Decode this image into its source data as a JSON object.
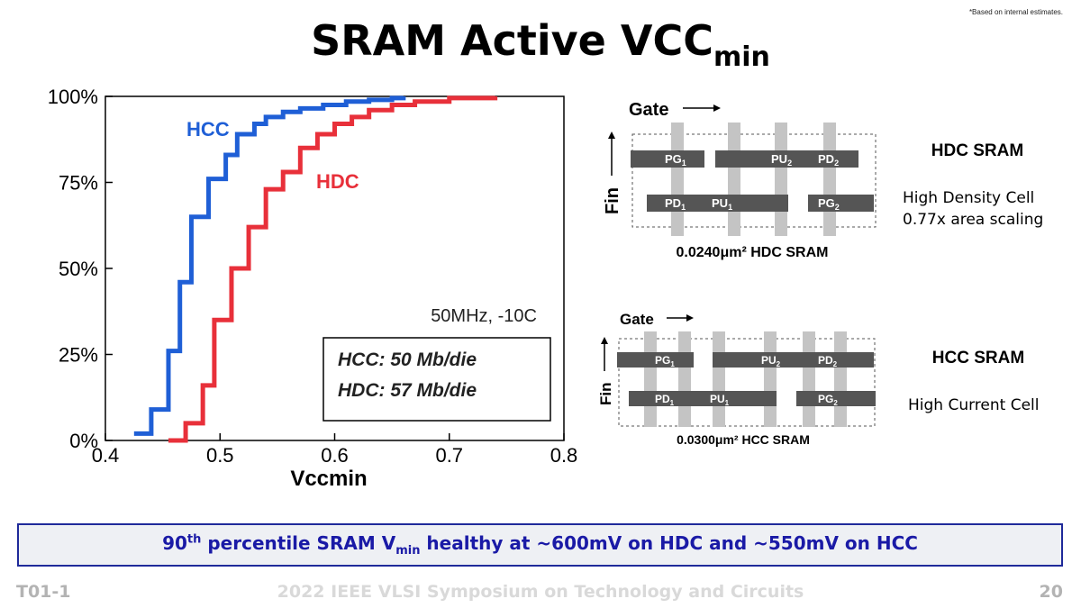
{
  "note": "*Based on internal estimates.",
  "title": {
    "main": "SRAM Active VCC",
    "sub": "min"
  },
  "chart_data": {
    "type": "line",
    "xlabel": "Vccmin",
    "ylabel": "",
    "xlim": [
      0.4,
      0.8
    ],
    "ylim": [
      0,
      1
    ],
    "xticks": [
      "0.4",
      "0.5",
      "0.6",
      "0.7",
      "0.8"
    ],
    "yticks": [
      "0%",
      "25%",
      "50%",
      "75%",
      "100%"
    ],
    "grid": false,
    "series": [
      {
        "name": "HCC",
        "color": "#1f5fd6",
        "x": [
          0.425,
          0.44,
          0.455,
          0.465,
          0.475,
          0.49,
          0.505,
          0.515,
          0.53,
          0.54,
          0.555,
          0.57,
          0.59,
          0.61,
          0.63,
          0.65,
          0.66
        ],
        "y": [
          0.02,
          0.09,
          0.26,
          0.46,
          0.65,
          0.76,
          0.83,
          0.89,
          0.92,
          0.94,
          0.955,
          0.965,
          0.975,
          0.985,
          0.99,
          0.995,
          1.0
        ]
      },
      {
        "name": "HDC",
        "color": "#e8303a",
        "x": [
          0.455,
          0.47,
          0.485,
          0.495,
          0.51,
          0.525,
          0.54,
          0.555,
          0.57,
          0.585,
          0.6,
          0.615,
          0.63,
          0.65,
          0.67,
          0.7,
          0.74
        ],
        "y": [
          0.0,
          0.05,
          0.16,
          0.35,
          0.5,
          0.62,
          0.73,
          0.78,
          0.85,
          0.89,
          0.92,
          0.94,
          0.96,
          0.975,
          0.985,
          0.995,
          1.0
        ]
      }
    ],
    "annotations": {
      "condition": "50MHz, -10C",
      "box_line1": "HCC: 50 Mb/die",
      "box_line2": "HDC: 57 Mb/die"
    }
  },
  "diagrams": {
    "hdc": {
      "gate_label": "Gate",
      "fin_label": "Fin",
      "caption": "0.0240μm² HDC SRAM",
      "side_title": "HDC SRAM",
      "side_desc1": "High Density Cell",
      "side_desc2": "0.77x area scaling",
      "top_labels": [
        "PG1",
        "PU2",
        "PD2"
      ],
      "bottom_labels": [
        "PD1",
        "PU1",
        "PG2"
      ]
    },
    "hcc": {
      "gate_label": "Gate",
      "fin_label": "Fin",
      "caption": "0.0300μm² HCC SRAM",
      "side_title": "HCC SRAM",
      "side_desc1": "High Current Cell",
      "top_labels": [
        "PG1",
        "PU2",
        "PD2"
      ],
      "bottom_labels": [
        "PD1",
        "PU1",
        "PG2"
      ]
    }
  },
  "banner": {
    "part1": "90",
    "sup": "th",
    "part2": " percentile SRAM V",
    "sub": "min",
    "part3": " healthy at ~600mV on HDC and ~550mV on HCC"
  },
  "footer": {
    "left": "T01-1",
    "center": "2022 IEEE VLSI Symposium on Technology and Circuits",
    "right": "20"
  }
}
